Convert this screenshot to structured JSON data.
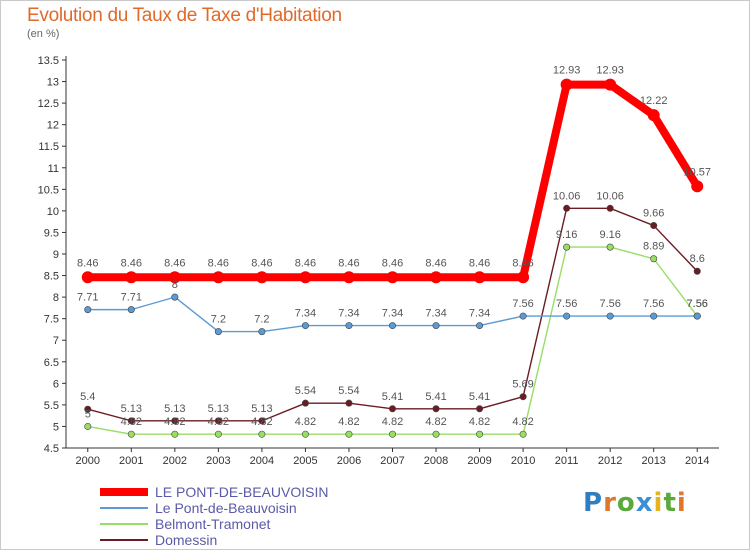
{
  "title": "Evolution du Taux de Taxe d'Habitation",
  "unit": "(en %)",
  "logo": {
    "letters": [
      "P",
      "r",
      "o",
      "x",
      "i",
      "t",
      "i"
    ],
    "colors": [
      "#2f7fc0",
      "#e0782b",
      "#5aa93c",
      "#3a8fd8",
      "#e6b21e",
      "#5aa93c",
      "#e0782b"
    ]
  },
  "chart_data": {
    "type": "line",
    "x": [
      2000,
      2001,
      2002,
      2003,
      2004,
      2005,
      2006,
      2007,
      2008,
      2009,
      2010,
      2011,
      2012,
      2013,
      2014
    ],
    "ylim": [
      4.5,
      13.5
    ],
    "yticks": [
      4.5,
      5,
      5.5,
      6,
      6.5,
      7,
      7.5,
      8,
      8.5,
      9,
      9.5,
      10,
      10.5,
      11,
      11.5,
      12,
      12.5,
      13,
      13.5
    ],
    "grid": false,
    "legend_position": "bottom-left",
    "series": [
      {
        "name": "LE PONT-DE-BEAUVOISIN",
        "color": "#ff0000",
        "values": [
          8.46,
          8.46,
          8.46,
          8.46,
          8.46,
          8.46,
          8.46,
          8.46,
          8.46,
          8.46,
          8.46,
          12.93,
          12.93,
          12.22,
          10.57
        ],
        "labels": [
          "8.46",
          "8.46",
          "8.46",
          "8.46",
          "8.46",
          "8.46",
          "8.46",
          "8.46",
          "8.46",
          "8.46",
          "8.46",
          "12.93",
          "12.93",
          "12.22",
          "10.57"
        ]
      },
      {
        "name": "Le Pont-de-Beauvoisin",
        "color": "#5b9bd5",
        "values": [
          7.71,
          7.71,
          8,
          7.2,
          7.2,
          7.34,
          7.34,
          7.34,
          7.34,
          7.34,
          7.56,
          7.56,
          7.56,
          7.56,
          7.56
        ],
        "labels": [
          "7.71",
          "7.71",
          "8",
          "7.2",
          "7.2",
          "7.34",
          "7.34",
          "7.34",
          "7.34",
          "7.34",
          "7.56",
          "7.56",
          "7.56",
          "7.56",
          "7.56"
        ]
      },
      {
        "name": "Belmont-Tramonet",
        "color": "#99dd66",
        "values": [
          5,
          4.82,
          4.82,
          4.82,
          4.82,
          4.82,
          4.82,
          4.82,
          4.82,
          4.82,
          4.82,
          9.16,
          9.16,
          8.89,
          7.56
        ],
        "labels": [
          "5",
          "4.82",
          "4.82",
          "4.82",
          "4.82",
          "4.82",
          "4.82",
          "4.82",
          "4.82",
          "4.82",
          "4.82",
          "9.16",
          "9.16",
          "8.89",
          "7.56"
        ]
      },
      {
        "name": "Domessin",
        "color": "#6b1c23",
        "values": [
          5.4,
          5.13,
          5.13,
          5.13,
          5.13,
          5.54,
          5.54,
          5.41,
          5.41,
          5.41,
          5.69,
          10.06,
          10.06,
          9.66,
          8.6
        ],
        "labels": [
          "5.4",
          "5.13",
          "5.13",
          "5.13",
          "5.13",
          "5.54",
          "5.54",
          "5.41",
          "5.41",
          "5.41",
          "5.69",
          "10.06",
          "10.06",
          "9.66",
          "8.6"
        ]
      }
    ]
  }
}
